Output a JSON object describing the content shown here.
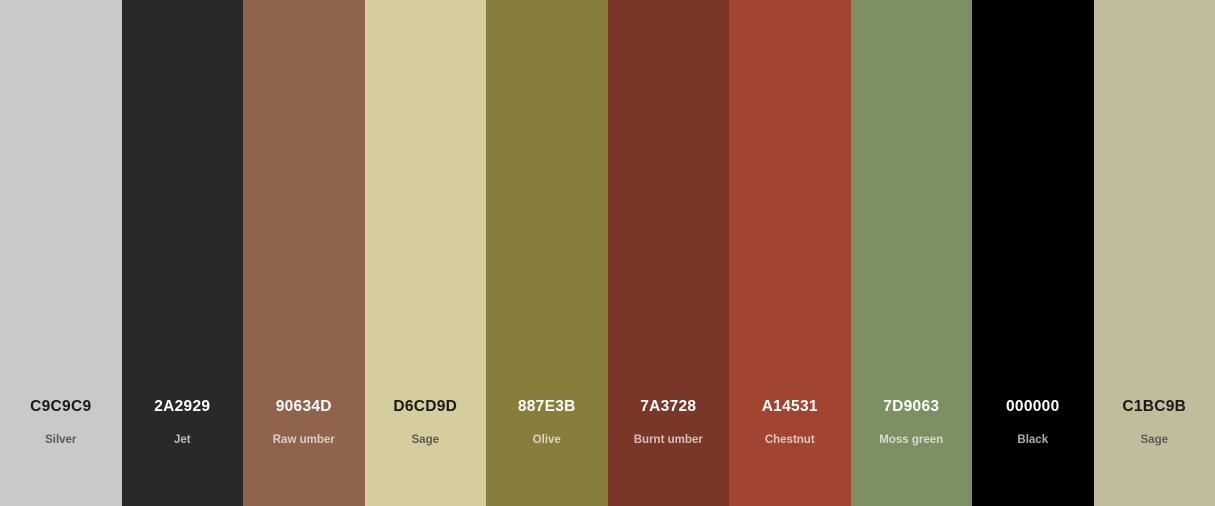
{
  "palette": {
    "colors": [
      {
        "hex": "C9C9C9",
        "name": "Silver",
        "color": "#C9C9C9",
        "tone": "light"
      },
      {
        "hex": "2A2929",
        "name": "Jet",
        "color": "#2A2929",
        "tone": "dark"
      },
      {
        "hex": "90634D",
        "name": "Raw umber",
        "color": "#90634D",
        "tone": "dark"
      },
      {
        "hex": "D6CD9D",
        "name": "Sage",
        "color": "#D6CD9D",
        "tone": "light"
      },
      {
        "hex": "887E3B",
        "name": "Olive",
        "color": "#887E3B",
        "tone": "dark"
      },
      {
        "hex": "7A3728",
        "name": "Burnt umber",
        "color": "#7A3728",
        "tone": "dark"
      },
      {
        "hex": "A14531",
        "name": "Chestnut",
        "color": "#A14531",
        "tone": "dark"
      },
      {
        "hex": "7D9063",
        "name": "Moss green",
        "color": "#7D9063",
        "tone": "dark"
      },
      {
        "hex": "000000",
        "name": "Black",
        "color": "#000000",
        "tone": "dark"
      },
      {
        "hex": "C1BC9B",
        "name": "Sage",
        "color": "#C1BC9B",
        "tone": "light"
      }
    ]
  }
}
